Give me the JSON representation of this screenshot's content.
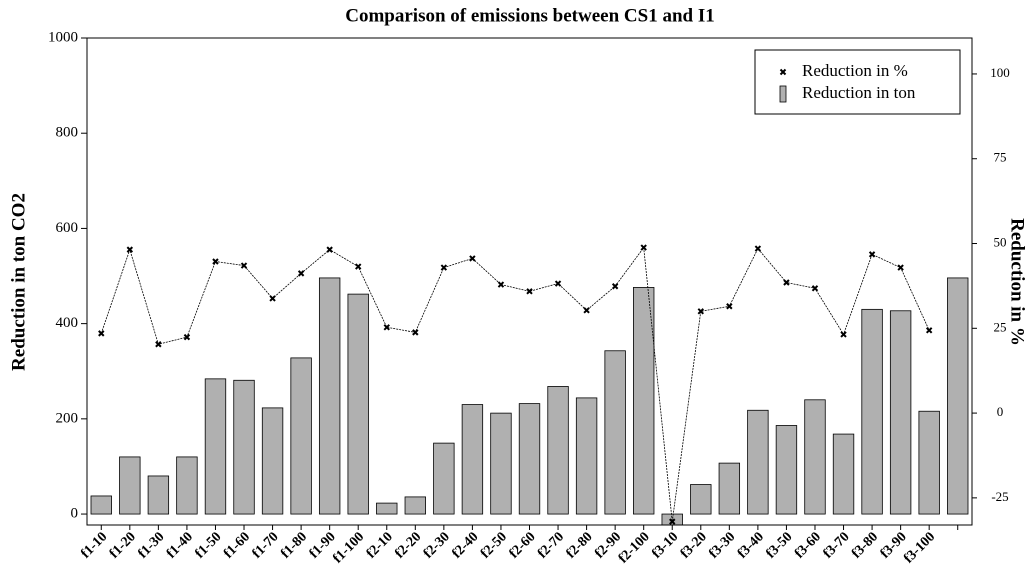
{
  "chart_data": {
    "type": "bar",
    "title": "Comparison of emissions between CS1 and I1",
    "y_label": "Reduction in ton CO2",
    "y2_label": "Reduction in %",
    "categories": [
      "f1-10",
      "f1-20",
      "f1-30",
      "f1-40",
      "f1-50",
      "f1-60",
      "f1-70",
      "f1-80",
      "f1-90",
      "f1-100",
      "f2-10",
      "f2-20",
      "f2-30",
      "f2-40",
      "f2-50",
      "f2-60",
      "f2-70",
      "f2-80",
      "f2-90",
      "f2-100",
      "f3-10",
      "f3-20",
      "f3-30",
      "f3-40",
      "f3-50",
      "f3-60",
      "f3-70",
      "f3-80",
      "f3-90",
      "f3-100",
      null
    ],
    "series": [
      {
        "name": "Reduction in %",
        "type": "line",
        "axis": "y2",
        "color": "#000000",
        "values": [
          23.5,
          48.2,
          20.3,
          22.4,
          44.7,
          43.5,
          33.8,
          41.2,
          48.2,
          43.2,
          25.3,
          23.8,
          42.9,
          45.6,
          37.9,
          35.9,
          38.2,
          30.3,
          37.4,
          48.8,
          -32,
          30,
          31.5,
          48.5,
          38.5,
          36.8,
          23.2,
          46.8,
          42.9,
          24.4,
          null
        ]
      },
      {
        "name": "Reduction in ton",
        "type": "bar",
        "axis": "y",
        "color": "#b0b0b0",
        "values": [
          38,
          120,
          80,
          120,
          284,
          281,
          223,
          328,
          496,
          462,
          23,
          36,
          149,
          230,
          212,
          232,
          268,
          244,
          343,
          476,
          -23,
          62,
          107,
          218,
          186,
          240,
          168,
          430,
          427,
          216,
          496
        ]
      }
    ],
    "ylim": [
      -23,
      1000
    ],
    "yticks": [
      0,
      200,
      400,
      600,
      800,
      1000
    ],
    "y2lim": [
      -33,
      110.6
    ],
    "y2ticks": [
      -25,
      0,
      25,
      50,
      75,
      100
    ],
    "legend": "top-right",
    "grid": false
  }
}
